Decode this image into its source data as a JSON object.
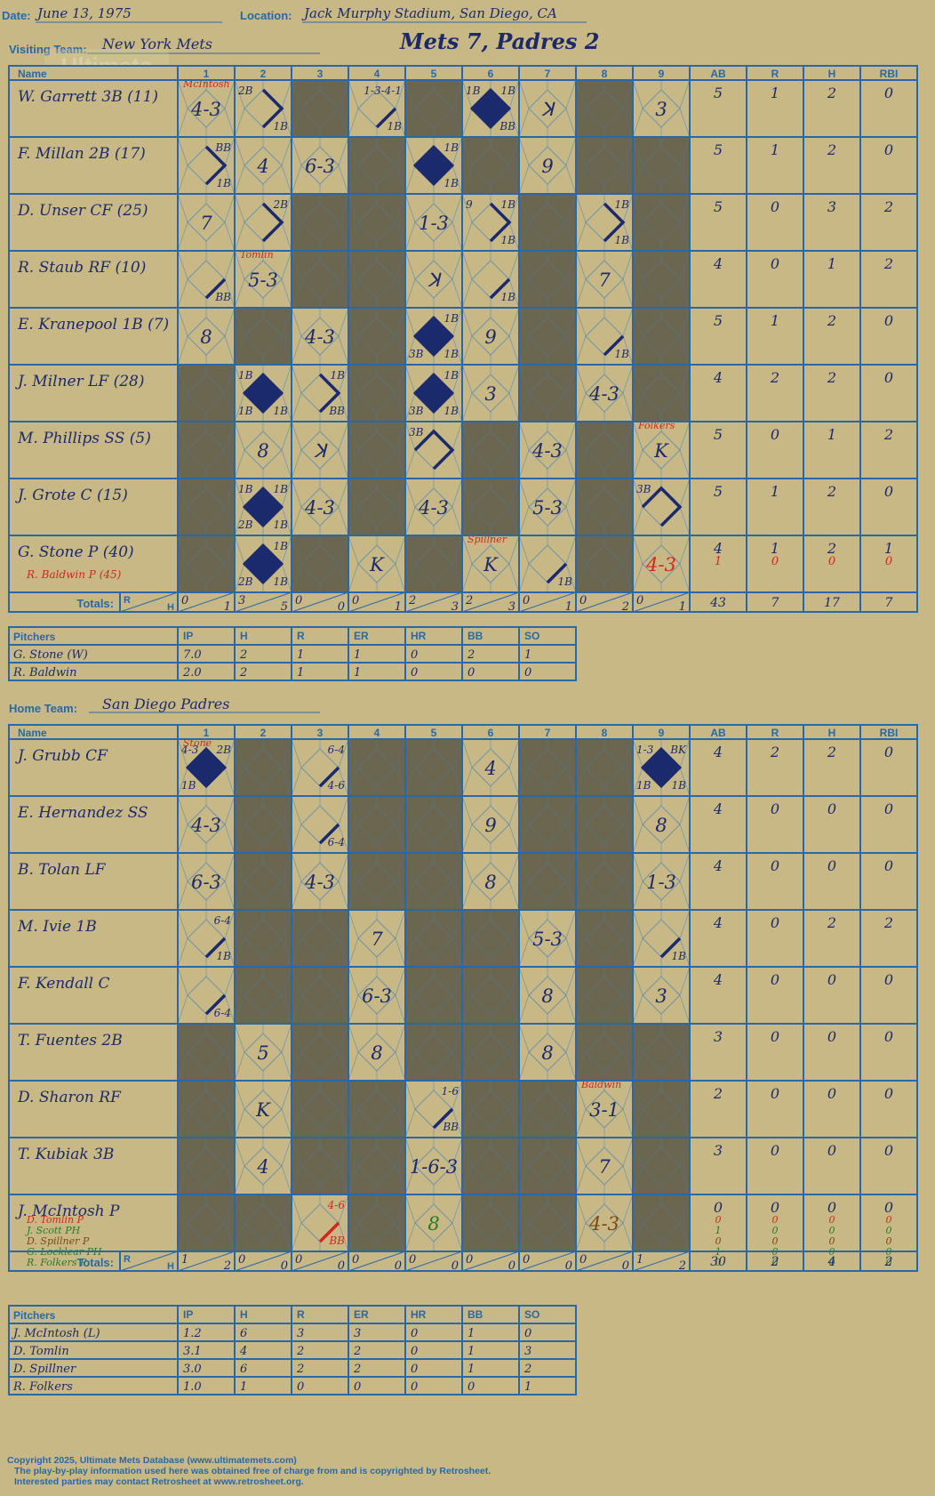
{
  "labels": {
    "date": "Date:",
    "location": "Location:",
    "visiting": "Visiting Team:",
    "home": "Home Team:",
    "name": "Name",
    "totals": "Totals:",
    "pitchers": "Pitchers",
    "r": "R",
    "h": "H",
    "innings": [
      "1",
      "2",
      "3",
      "4",
      "5",
      "6",
      "7",
      "8",
      "9"
    ],
    "stat_heads": [
      "AB",
      "R",
      "H",
      "RBI"
    ],
    "pitch_heads": [
      "IP",
      "H",
      "R",
      "ER",
      "HR",
      "BB",
      "SO"
    ]
  },
  "game": {
    "date": "June 13, 1975",
    "location": "Jack Murphy Stadium, San Diego, CA",
    "visiting_team": "New York Mets",
    "home_team": "San Diego Padres",
    "result": "Mets 7, Padres 2"
  },
  "watermark": {
    "line1": "Ultimate",
    "line2": "Mets",
    "line3": "Database",
    "url": "ultimatemets.com"
  },
  "visitors": {
    "batters": [
      {
        "name": "W. Garrett 3B (11)",
        "stats": [
          "5",
          "1",
          "2",
          "0"
        ],
        "cells": [
          {
            "txt": "4-3",
            "note": "McIntosh"
          },
          {
            "path": 2,
            "tl": "2B",
            "br": "1B"
          },
          {
            "dark": true
          },
          {
            "path": 1,
            "tr": "1-3-4-1",
            "br": "1B"
          },
          {
            "dark": true
          },
          {
            "path": 4,
            "tl": "1B",
            "tr": "1B",
            "br": "BB"
          },
          {
            "txt": "ꓘ"
          },
          {
            "dark": true
          },
          {
            "txt": "3"
          }
        ]
      },
      {
        "name": "F. Millan 2B (17)",
        "stats": [
          "5",
          "1",
          "2",
          "0"
        ],
        "cells": [
          {
            "path": 2,
            "tr": "BB",
            "br": "1B"
          },
          {
            "txt": "4"
          },
          {
            "txt": "6-3"
          },
          {
            "dark": true
          },
          {
            "path": 4,
            "tr": "1B",
            "br": "1B"
          },
          {
            "dark": true
          },
          {
            "txt": "9"
          },
          {
            "dark": true
          },
          {
            "dark": true
          }
        ]
      },
      {
        "name": "D. Unser CF (25)",
        "stats": [
          "5",
          "0",
          "3",
          "2"
        ],
        "cells": [
          {
            "txt": "7"
          },
          {
            "path": 2,
            "tr": "2B"
          },
          {
            "dark": true
          },
          {
            "dark": true
          },
          {
            "txt": "1-3"
          },
          {
            "path": 2,
            "tl": "9",
            "tr": "1B",
            "br": "1B"
          },
          {
            "dark": true
          },
          {
            "path": 2,
            "tr": "1B",
            "br": "1B"
          },
          {
            "dark": true
          }
        ]
      },
      {
        "name": "R. Staub RF (10)",
        "stats": [
          "4",
          "0",
          "1",
          "2"
        ],
        "cells": [
          {
            "path": 1,
            "br": "BB"
          },
          {
            "txt": "5-3",
            "note": "Tomlin"
          },
          {
            "dark": true
          },
          {
            "dark": true
          },
          {
            "txt": "ꓘ"
          },
          {
            "path": 1,
            "br": "1B"
          },
          {
            "dark": true
          },
          {
            "txt": "7"
          },
          {
            "dark": true
          }
        ]
      },
      {
        "name": "E. Kranepool 1B (7)",
        "stats": [
          "5",
          "1",
          "2",
          "0"
        ],
        "cells": [
          {
            "txt": "8"
          },
          {
            "dark": true
          },
          {
            "txt": "4-3"
          },
          {
            "dark": true
          },
          {
            "path": 4,
            "tr": "1B",
            "bl": "3B",
            "br": "1B"
          },
          {
            "txt": "9"
          },
          {
            "dark": true
          },
          {
            "path": 1,
            "br": "1B"
          },
          {
            "dark": true
          }
        ]
      },
      {
        "name": "J. Milner LF (28)",
        "stats": [
          "4",
          "2",
          "2",
          "0"
        ],
        "cells": [
          {
            "dark": true
          },
          {
            "path": 4,
            "tl": "1B",
            "bl": "1B",
            "br": "1B"
          },
          {
            "path": 2,
            "tr": "1B",
            "br": "BB"
          },
          {
            "dark": true
          },
          {
            "path": 4,
            "tr": "1B",
            "bl": "3B",
            "br": "1B"
          },
          {
            "txt": "3"
          },
          {
            "dark": true
          },
          {
            "txt": "4-3"
          },
          {
            "dark": true
          }
        ]
      },
      {
        "name": "M. Phillips SS (5)",
        "stats": [
          "5",
          "0",
          "1",
          "2"
        ],
        "cells": [
          {
            "dark": true
          },
          {
            "txt": "8"
          },
          {
            "txt": "ꓘ"
          },
          {
            "dark": true
          },
          {
            "path": 3,
            "tl": "3B"
          },
          {
            "dark": true
          },
          {
            "txt": "4-3"
          },
          {
            "dark": true
          },
          {
            "txt": "K",
            "note": "Folkers"
          }
        ]
      },
      {
        "name": "J. Grote C (15)",
        "stats": [
          "5",
          "1",
          "2",
          "0"
        ],
        "cells": [
          {
            "dark": true
          },
          {
            "path": 4,
            "tl": "1B",
            "tr": "1B",
            "bl": "2B",
            "br": "1B"
          },
          {
            "txt": "4-3"
          },
          {
            "dark": true
          },
          {
            "txt": "4-3"
          },
          {
            "dark": true
          },
          {
            "txt": "5-3"
          },
          {
            "dark": true
          },
          {
            "path": 3,
            "tl": "3B"
          }
        ]
      },
      {
        "name": "G. Stone P (40)",
        "sub": "R. Baldwin P (45)",
        "stats": [
          "4",
          "1",
          "2",
          "1"
        ],
        "stats2": [
          "1",
          "0",
          "0",
          "0"
        ],
        "cells": [
          {
            "dark": true
          },
          {
            "path": 4,
            "tr": "1B",
            "bl": "2B",
            "br": "1B"
          },
          {
            "dark": true
          },
          {
            "txt": "K"
          },
          {
            "dark": true
          },
          {
            "txt": "K",
            "note": "Spillner"
          },
          {
            "path": 1,
            "br": "1B"
          },
          {
            "dark": true
          },
          {
            "txt": "4-3",
            "red": true
          }
        ]
      }
    ],
    "totals": {
      "rh": [
        [
          "0",
          "1"
        ],
        [
          "3",
          "5"
        ],
        [
          "0",
          "0"
        ],
        [
          "0",
          "1"
        ],
        [
          "2",
          "3"
        ],
        [
          "2",
          "3"
        ],
        [
          "0",
          "1"
        ],
        [
          "0",
          "2"
        ],
        [
          "0",
          "1"
        ]
      ],
      "stats": [
        "43",
        "7",
        "17",
        "7"
      ]
    },
    "pitchers": [
      {
        "name": "G. Stone (W)",
        "line": [
          "7.0",
          "2",
          "1",
          "1",
          "0",
          "2",
          "1"
        ]
      },
      {
        "name": "R. Baldwin",
        "line": [
          "2.0",
          "2",
          "1",
          "1",
          "0",
          "0",
          "0"
        ]
      }
    ]
  },
  "home": {
    "batters": [
      {
        "name": "J. Grubb CF",
        "stats": [
          "4",
          "2",
          "2",
          "0"
        ],
        "cells": [
          {
            "path": 4,
            "tl": "4-3",
            "tr": "2B",
            "bl": "1B",
            "note": "Stone"
          },
          {
            "dark": true
          },
          {
            "path": 1,
            "tr": "6-4",
            "br": "4-6"
          },
          {
            "dark": true
          },
          {
            "dark": true
          },
          {
            "txt": "4"
          },
          {
            "dark": true
          },
          {
            "dark": true
          },
          {
            "path": 4,
            "tl": "1-3",
            "tr": "BK",
            "bl": "1B",
            "br": "1B"
          }
        ]
      },
      {
        "name": "E. Hernandez SS",
        "stats": [
          "4",
          "0",
          "0",
          "0"
        ],
        "cells": [
          {
            "txt": "4-3"
          },
          {
            "dark": true
          },
          {
            "path": 1,
            "br": "6-4"
          },
          {
            "dark": true
          },
          {
            "dark": true
          },
          {
            "txt": "9"
          },
          {
            "dark": true
          },
          {
            "dark": true
          },
          {
            "txt": "8"
          }
        ]
      },
      {
        "name": "B. Tolan LF",
        "stats": [
          "4",
          "0",
          "0",
          "0"
        ],
        "cells": [
          {
            "txt": "6-3"
          },
          {
            "dark": true
          },
          {
            "txt": "4-3"
          },
          {
            "dark": true
          },
          {
            "dark": true
          },
          {
            "txt": "8"
          },
          {
            "dark": true
          },
          {
            "dark": true
          },
          {
            "txt": "1-3"
          }
        ]
      },
      {
        "name": "M. Ivie 1B",
        "stats": [
          "4",
          "0",
          "2",
          "2"
        ],
        "cells": [
          {
            "path": 1,
            "tr": "6-4",
            "br": "1B"
          },
          {
            "dark": true
          },
          {
            "dark": true
          },
          {
            "txt": "7"
          },
          {
            "dark": true
          },
          {
            "dark": true
          },
          {
            "txt": "5-3"
          },
          {
            "dark": true
          },
          {
            "path": 1,
            "br": "1B"
          }
        ]
      },
      {
        "name": "F. Kendall C",
        "stats": [
          "4",
          "0",
          "0",
          "0"
        ],
        "cells": [
          {
            "path": 1,
            "br": "6-4"
          },
          {
            "dark": true
          },
          {
            "dark": true
          },
          {
            "txt": "6-3"
          },
          {
            "dark": true
          },
          {
            "dark": true
          },
          {
            "txt": "8"
          },
          {
            "dark": true
          },
          {
            "txt": "3"
          }
        ]
      },
      {
        "name": "T. Fuentes 2B",
        "stats": [
          "3",
          "0",
          "0",
          "0"
        ],
        "cells": [
          {
            "dark": true
          },
          {
            "txt": "5"
          },
          {
            "dark": true
          },
          {
            "txt": "8"
          },
          {
            "dark": true
          },
          {
            "dark": true
          },
          {
            "txt": "8"
          },
          {
            "dark": true
          },
          {
            "dark": true
          }
        ]
      },
      {
        "name": "D. Sharon RF",
        "stats": [
          "2",
          "0",
          "0",
          "0"
        ],
        "cells": [
          {
            "dark": true
          },
          {
            "txt": "K"
          },
          {
            "dark": true
          },
          {
            "dark": true
          },
          {
            "path": 1,
            "tr": "1-6",
            "br": "BB"
          },
          {
            "dark": true
          },
          {
            "dark": true
          },
          {
            "txt": "3-1",
            "note": "Baldwin"
          },
          {
            "dark": true
          }
        ]
      },
      {
        "name": "T. Kubiak 3B",
        "stats": [
          "3",
          "0",
          "0",
          "0"
        ],
        "cells": [
          {
            "dark": true
          },
          {
            "txt": "4"
          },
          {
            "dark": true
          },
          {
            "dark": true
          },
          {
            "txt": "1-6-3"
          },
          {
            "dark": true
          },
          {
            "dark": true
          },
          {
            "txt": "7"
          },
          {
            "dark": true
          }
        ]
      },
      {
        "name": "J. McIntosh P",
        "stats": [
          "0",
          "0",
          "0",
          "0"
        ],
        "subs": [
          {
            "name": "D. Tomlin P",
            "cls": "red",
            "st": [
              "0",
              "0",
              "0",
              "0"
            ]
          },
          {
            "name": "J. Scott PH",
            "cls": "grn",
            "st": [
              "1",
              "0",
              "0",
              "0"
            ]
          },
          {
            "name": "D. Spillner P",
            "cls": "brn",
            "st": [
              "0",
              "0",
              "0",
              "0"
            ]
          },
          {
            "name": "G. Locklear PH",
            "cls": "grn",
            "st": [
              "1",
              "0",
              "0",
              "0"
            ]
          },
          {
            "name": "R. Folkers P",
            "cls": "grn",
            "st": [
              "0",
              "0",
              "0",
              "0"
            ]
          }
        ],
        "cells": [
          {
            "dark": true
          },
          {
            "dark": true
          },
          {
            "path": 1,
            "tr": "4-6",
            "br": "BB",
            "red": true
          },
          {
            "dark": true
          },
          {
            "txt": "8",
            "green": true
          },
          {
            "dark": true
          },
          {
            "dark": true
          },
          {
            "txt": "4-3",
            "brown": true
          },
          {
            "dark": true
          }
        ]
      }
    ],
    "totals": {
      "rh": [
        [
          "1",
          "2"
        ],
        [
          "0",
          "0"
        ],
        [
          "0",
          "0"
        ],
        [
          "0",
          "0"
        ],
        [
          "0",
          "0"
        ],
        [
          "0",
          "0"
        ],
        [
          "0",
          "0"
        ],
        [
          "0",
          "0"
        ],
        [
          "1",
          "2"
        ]
      ],
      "stats": [
        "30",
        "2",
        "4",
        "2"
      ]
    },
    "pitchers": [
      {
        "name": "J. McIntosh (L)",
        "line": [
          "1.2",
          "6",
          "3",
          "3",
          "0",
          "1",
          "0"
        ]
      },
      {
        "name": "D. Tomlin",
        "line": [
          "3.1",
          "4",
          "2",
          "2",
          "0",
          "1",
          "3"
        ]
      },
      {
        "name": "D. Spillner",
        "line": [
          "3.0",
          "6",
          "2",
          "2",
          "0",
          "1",
          "2"
        ]
      },
      {
        "name": "R. Folkers",
        "line": [
          "1.0",
          "1",
          "0",
          "0",
          "0",
          "0",
          "1"
        ]
      }
    ]
  },
  "footer": {
    "line1": "Copyright 2025, Ultimate Mets Database (www.ultimatemets.com)",
    "line2": "The play-by-play information used here was obtained free of charge from and is copyrighted by Retrosheet.",
    "line3": "Interested parties may contact Retrosheet at www.retrosheet.org."
  }
}
